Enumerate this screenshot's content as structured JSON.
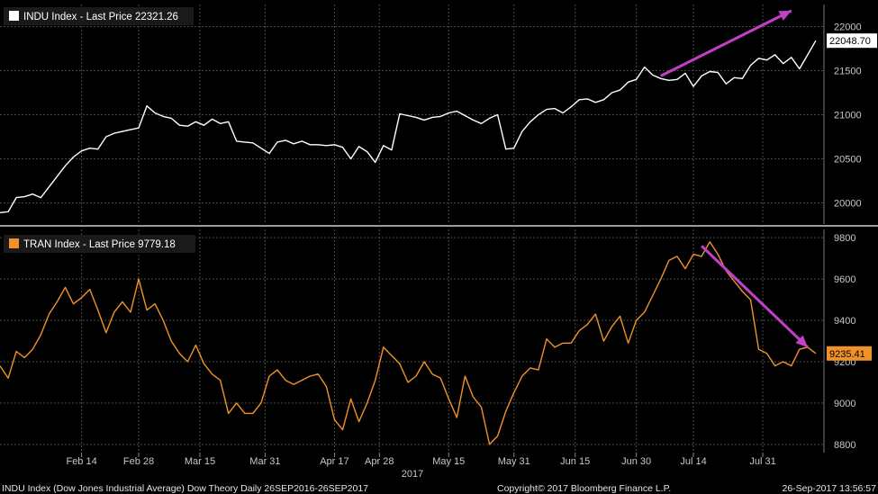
{
  "footer": {
    "left": "INDU Index (Dow Jones Industrial Average) Dow Theory  Daily 26SEP2016-26SEP2017",
    "center": "Copyright© 2017 Bloomberg Finance L.P.",
    "right": "26-Sep-2017 13:56:57"
  },
  "x_axis": {
    "year_label": "2017",
    "ticks": [
      {
        "label": "Feb 14",
        "day": 140
      },
      {
        "label": "Feb 28",
        "day": 154
      },
      {
        "label": "Mar 15",
        "day": 169
      },
      {
        "label": "Mar 31",
        "day": 185
      },
      {
        "label": "Apr 17",
        "day": 202
      },
      {
        "label": "Apr 28",
        "day": 213
      },
      {
        "label": "May 15",
        "day": 230
      },
      {
        "label": "May 31",
        "day": 246
      },
      {
        "label": "Jun 15",
        "day": 261
      },
      {
        "label": "Jun 30",
        "day": 276
      },
      {
        "label": "Jul 14",
        "day": 290
      },
      {
        "label": "Jul 31",
        "day": 307
      }
    ]
  },
  "colors": {
    "background": "#000000",
    "grid": "#4a4a4a",
    "indu_line": "#ffffff",
    "tran_line": "#f0922a",
    "arrow": "#c040c8",
    "divider": "#9a9a9a"
  },
  "chart_data": [
    {
      "type": "line",
      "x_unit": "day",
      "series": [
        {
          "name": "INDU Index - Last Price 22321.26",
          "last_label": "22048.70",
          "x": [
            120,
            122,
            124,
            126,
            128,
            130,
            132,
            134,
            136,
            138,
            140,
            142,
            144,
            146,
            148,
            150,
            152,
            154,
            156,
            158,
            160,
            162,
            164,
            166,
            168,
            170,
            172,
            174,
            176,
            178,
            180,
            182,
            184,
            186,
            188,
            190,
            192,
            194,
            196,
            198,
            200,
            202,
            204,
            206,
            208,
            210,
            212,
            214,
            216,
            218,
            220,
            222,
            224,
            226,
            228,
            230,
            232,
            234,
            236,
            238,
            240,
            242,
            244,
            246,
            248,
            250,
            252,
            254,
            256,
            258,
            260,
            262,
            264,
            266,
            268,
            270,
            272,
            274,
            276,
            278,
            280,
            282,
            284,
            286,
            288,
            290,
            292,
            294,
            296,
            298,
            300,
            302,
            304,
            306,
            308,
            310,
            312,
            314,
            316,
            318,
            320
          ],
          "y": [
            19890,
            19900,
            20060,
            20070,
            20100,
            20060,
            20180,
            20300,
            20420,
            20520,
            20590,
            20620,
            20610,
            20750,
            20790,
            20810,
            20830,
            20850,
            21100,
            21020,
            20980,
            20960,
            20880,
            20870,
            20920,
            20880,
            20950,
            20900,
            20920,
            20700,
            20690,
            20680,
            20620,
            20560,
            20690,
            20710,
            20670,
            20700,
            20660,
            20660,
            20650,
            20660,
            20630,
            20500,
            20640,
            20580,
            20460,
            20650,
            20600,
            21010,
            20990,
            20970,
            20940,
            20970,
            20980,
            21020,
            21040,
            20990,
            20940,
            20900,
            20960,
            21000,
            20610,
            20620,
            20810,
            20920,
            21000,
            21060,
            21070,
            21020,
            21090,
            21170,
            21180,
            21140,
            21170,
            21250,
            21280,
            21370,
            21400,
            21540,
            21450,
            21410,
            21390,
            21400,
            21470,
            21320,
            21440,
            21490,
            21480,
            21350,
            21420,
            21410,
            21560,
            21640,
            21620,
            21680,
            21580,
            21650,
            21520,
            21680,
            21840
          ]
        }
      ],
      "yticks": [
        20000,
        20500,
        21000,
        21500,
        22000
      ],
      "ylim": [
        19760,
        22250
      ]
    },
    {
      "type": "line",
      "x_unit": "day",
      "series": [
        {
          "name": "TRAN Index - Last Price 9779.18",
          "last_label": "9235.41",
          "x": [
            120,
            122,
            124,
            126,
            128,
            130,
            132,
            134,
            136,
            138,
            140,
            142,
            144,
            146,
            148,
            150,
            152,
            154,
            156,
            158,
            160,
            162,
            164,
            166,
            168,
            170,
            172,
            174,
            176,
            178,
            180,
            182,
            184,
            186,
            188,
            190,
            192,
            194,
            196,
            198,
            200,
            202,
            204,
            206,
            208,
            210,
            212,
            214,
            216,
            218,
            220,
            222,
            224,
            226,
            228,
            230,
            232,
            234,
            236,
            238,
            240,
            242,
            244,
            246,
            248,
            250,
            252,
            254,
            256,
            258,
            260,
            262,
            264,
            266,
            268,
            270,
            272,
            274,
            276,
            278,
            280,
            282,
            284,
            286,
            288,
            290,
            292,
            294,
            296,
            298,
            300,
            302,
            304,
            306,
            308,
            310,
            312,
            314,
            316,
            318,
            320
          ],
          "y": [
            9180,
            9120,
            9250,
            9220,
            9260,
            9330,
            9430,
            9490,
            9560,
            9480,
            9510,
            9550,
            9450,
            9340,
            9440,
            9490,
            9440,
            9600,
            9450,
            9480,
            9400,
            9300,
            9240,
            9200,
            9280,
            9190,
            9140,
            9110,
            8950,
            9000,
            8950,
            8950,
            9000,
            9130,
            9160,
            9110,
            9090,
            9110,
            9130,
            9140,
            9080,
            8920,
            8870,
            9020,
            8910,
            9000,
            9110,
            9270,
            9230,
            9190,
            9100,
            9130,
            9200,
            9140,
            9120,
            9020,
            8930,
            9130,
            9030,
            8980,
            8800,
            8840,
            8960,
            9050,
            9130,
            9170,
            9160,
            9310,
            9270,
            9290,
            9290,
            9350,
            9380,
            9430,
            9300,
            9370,
            9420,
            9290,
            9400,
            9440,
            9520,
            9600,
            9690,
            9710,
            9650,
            9720,
            9710,
            9780,
            9720,
            9640,
            9590,
            9540,
            9500,
            9260,
            9240,
            9180,
            9200,
            9180,
            9260,
            9270,
            9240
          ]
        }
      ],
      "yticks": [
        8800,
        9000,
        9200,
        9400,
        9600,
        9800
      ],
      "ylim": [
        8760,
        9840
      ]
    }
  ]
}
